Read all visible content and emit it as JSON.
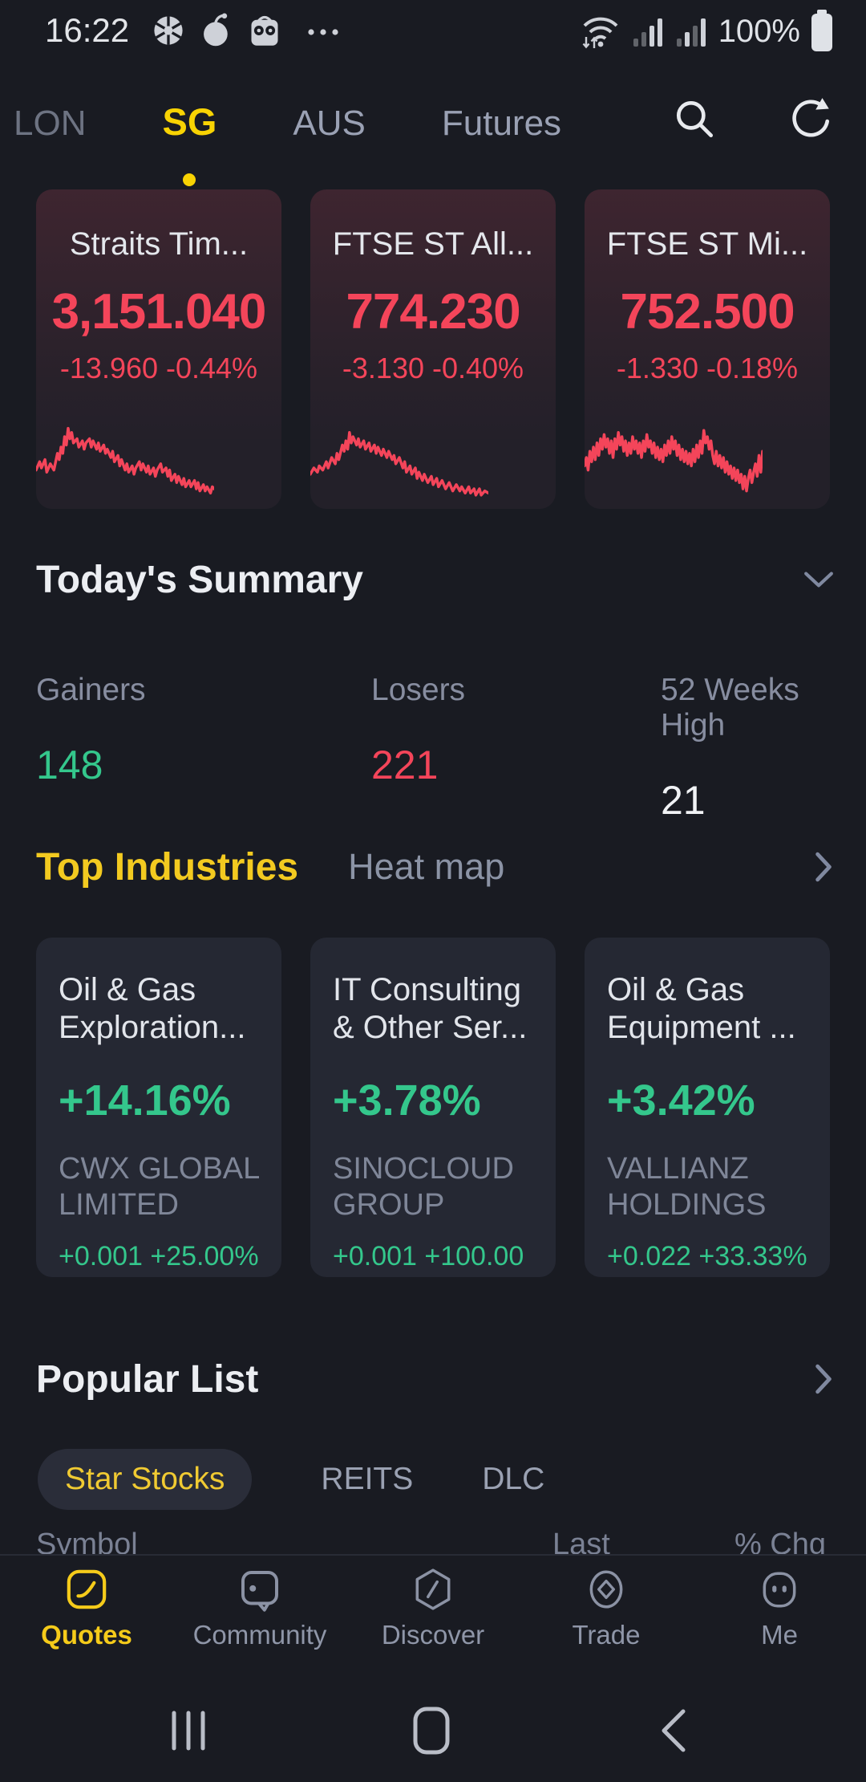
{
  "colors": {
    "background": "#191b22",
    "card": "#252833",
    "red": "#f4455a",
    "green": "#34c78c",
    "yellow": "#f5cb1a",
    "text_primary": "#e7e9ee",
    "text_secondary": "#878da0"
  },
  "status_bar": {
    "time": "16:22",
    "battery_level": "100%"
  },
  "icons": {
    "status_left": [
      "aperture-icon",
      "apple-icon",
      "owl-icon",
      "more-notifications-icon"
    ],
    "status_right": [
      "wifi-icon",
      "signal-icon",
      "signal-icon",
      "battery-icon"
    ],
    "tab_actions": [
      "search-icon",
      "refresh-icon"
    ],
    "section": [
      "chevron-down-icon",
      "chevron-right-icon"
    ],
    "bottom_nav": [
      "quotes-icon",
      "community-icon",
      "discover-icon",
      "trade-icon",
      "me-icon"
    ],
    "android": [
      "recents-icon",
      "home-icon",
      "back-icon"
    ]
  },
  "top_tabs": {
    "items": [
      {
        "label": "LON",
        "active": false
      },
      {
        "label": "SG",
        "active": true
      },
      {
        "label": "AUS",
        "active": false
      },
      {
        "label": "Futures",
        "active": false
      }
    ]
  },
  "index_cards": [
    {
      "name": "Straits Tim...",
      "last": "3,151.040",
      "change": "-13.960 -0.44%",
      "sparkline": [
        [
          0,
          26
        ],
        [
          2,
          22
        ],
        [
          3,
          25
        ],
        [
          5,
          21
        ],
        [
          6,
          27
        ],
        [
          8,
          23
        ],
        [
          10,
          26
        ],
        [
          11,
          22
        ],
        [
          12,
          18
        ],
        [
          13,
          21
        ],
        [
          14,
          15
        ],
        [
          15,
          18
        ],
        [
          16,
          10
        ],
        [
          17,
          14
        ],
        [
          18,
          6
        ],
        [
          19,
          11
        ],
        [
          20,
          8
        ],
        [
          21,
          13
        ],
        [
          23,
          11
        ],
        [
          24,
          15
        ],
        [
          26,
          12
        ],
        [
          27,
          16
        ],
        [
          28,
          13
        ],
        [
          30,
          11
        ],
        [
          31,
          15
        ],
        [
          32,
          12
        ],
        [
          34,
          16
        ],
        [
          35,
          13
        ],
        [
          36,
          17
        ],
        [
          38,
          14
        ],
        [
          39,
          18
        ],
        [
          40,
          16
        ],
        [
          42,
          20
        ],
        [
          43,
          17
        ],
        [
          44,
          22
        ],
        [
          46,
          19
        ],
        [
          47,
          24
        ],
        [
          48,
          21
        ],
        [
          50,
          26
        ],
        [
          51,
          23
        ],
        [
          52,
          27
        ],
        [
          54,
          24
        ],
        [
          55,
          28
        ],
        [
          56,
          25
        ],
        [
          58,
          22
        ],
        [
          59,
          26
        ],
        [
          60,
          23
        ],
        [
          62,
          27
        ],
        [
          63,
          24
        ],
        [
          64,
          28
        ],
        [
          66,
          25
        ],
        [
          67,
          29
        ],
        [
          68,
          26
        ],
        [
          70,
          23
        ],
        [
          71,
          27
        ],
        [
          73,
          25
        ],
        [
          74,
          29
        ],
        [
          75,
          26
        ],
        [
          76,
          31
        ],
        [
          78,
          28
        ],
        [
          79,
          32
        ],
        [
          80,
          29
        ],
        [
          82,
          33
        ],
        [
          83,
          30
        ],
        [
          84,
          34
        ],
        [
          86,
          31
        ],
        [
          87,
          34
        ],
        [
          89,
          31
        ],
        [
          90,
          35
        ],
        [
          91,
          32
        ],
        [
          92,
          36
        ],
        [
          94,
          33
        ],
        [
          95,
          36
        ],
        [
          96,
          34
        ],
        [
          98,
          37
        ],
        [
          99,
          34
        ],
        [
          100,
          35
        ]
      ]
    },
    {
      "name": "FTSE ST All...",
      "last": "774.230",
      "change": "-3.130 -0.40%",
      "sparkline": [
        [
          0,
          28
        ],
        [
          2,
          25
        ],
        [
          4,
          27
        ],
        [
          5,
          24
        ],
        [
          7,
          26
        ],
        [
          9,
          22
        ],
        [
          10,
          25
        ],
        [
          12,
          20
        ],
        [
          14,
          23
        ],
        [
          15,
          18
        ],
        [
          16,
          21
        ],
        [
          18,
          14
        ],
        [
          19,
          17
        ],
        [
          20,
          12
        ],
        [
          21,
          16
        ],
        [
          22,
          8
        ],
        [
          23,
          13
        ],
        [
          24,
          10
        ],
        [
          26,
          14
        ],
        [
          27,
          11
        ],
        [
          28,
          15
        ],
        [
          30,
          12
        ],
        [
          31,
          16
        ],
        [
          33,
          13
        ],
        [
          34,
          17
        ],
        [
          36,
          14
        ],
        [
          37,
          18
        ],
        [
          38,
          15
        ],
        [
          40,
          19
        ],
        [
          41,
          16
        ],
        [
          43,
          20
        ],
        [
          44,
          17
        ],
        [
          46,
          21
        ],
        [
          47,
          19
        ],
        [
          48,
          23
        ],
        [
          50,
          20
        ],
        [
          52,
          25
        ],
        [
          53,
          22
        ],
        [
          54,
          27
        ],
        [
          56,
          24
        ],
        [
          57,
          28
        ],
        [
          59,
          25
        ],
        [
          60,
          30
        ],
        [
          61,
          27
        ],
        [
          63,
          31
        ],
        [
          64,
          28
        ],
        [
          66,
          32
        ],
        [
          68,
          29
        ],
        [
          69,
          33
        ],
        [
          71,
          30
        ],
        [
          72,
          34
        ],
        [
          74,
          31
        ],
        [
          76,
          35
        ],
        [
          78,
          32
        ],
        [
          80,
          36
        ],
        [
          82,
          33
        ],
        [
          84,
          36
        ],
        [
          85,
          34
        ],
        [
          87,
          37
        ],
        [
          89,
          34
        ],
        [
          90,
          37
        ],
        [
          92,
          35
        ],
        [
          93,
          38
        ],
        [
          95,
          35
        ],
        [
          96,
          38
        ],
        [
          98,
          36
        ],
        [
          100,
          37
        ]
      ]
    },
    {
      "name": "FTSE ST Mi...",
      "last": "752.500",
      "change": "-1.330 -0.18%",
      "sparkline": [
        [
          0,
          24
        ],
        [
          1,
          20
        ],
        [
          2,
          26
        ],
        [
          3,
          17
        ],
        [
          4,
          22
        ],
        [
          5,
          15
        ],
        [
          6,
          21
        ],
        [
          7,
          13
        ],
        [
          8,
          19
        ],
        [
          9,
          11
        ],
        [
          10,
          16
        ],
        [
          11,
          9
        ],
        [
          12,
          15
        ],
        [
          13,
          11
        ],
        [
          14,
          18
        ],
        [
          15,
          12
        ],
        [
          16,
          20
        ],
        [
          17,
          11
        ],
        [
          18,
          16
        ],
        [
          19,
          8
        ],
        [
          20,
          14
        ],
        [
          21,
          10
        ],
        [
          22,
          17
        ],
        [
          23,
          12
        ],
        [
          24,
          19
        ],
        [
          25,
          13
        ],
        [
          26,
          18
        ],
        [
          27,
          10
        ],
        [
          28,
          16
        ],
        [
          29,
          12
        ],
        [
          30,
          18
        ],
        [
          31,
          13
        ],
        [
          32,
          20
        ],
        [
          33,
          12
        ],
        [
          34,
          17
        ],
        [
          35,
          9
        ],
        [
          36,
          15
        ],
        [
          37,
          12
        ],
        [
          38,
          18
        ],
        [
          39,
          13
        ],
        [
          40,
          20
        ],
        [
          41,
          15
        ],
        [
          42,
          21
        ],
        [
          43,
          16
        ],
        [
          44,
          22
        ],
        [
          45,
          14
        ],
        [
          46,
          19
        ],
        [
          47,
          12
        ],
        [
          48,
          18
        ],
        [
          49,
          10
        ],
        [
          50,
          16
        ],
        [
          51,
          12
        ],
        [
          52,
          19
        ],
        [
          53,
          14
        ],
        [
          54,
          21
        ],
        [
          55,
          16
        ],
        [
          56,
          22
        ],
        [
          57,
          17
        ],
        [
          58,
          23
        ],
        [
          59,
          18
        ],
        [
          60,
          24
        ],
        [
          61,
          16
        ],
        [
          62,
          22
        ],
        [
          63,
          14
        ],
        [
          64,
          20
        ],
        [
          65,
          12
        ],
        [
          66,
          18
        ],
        [
          67,
          7
        ],
        [
          68,
          13
        ],
        [
          69,
          10
        ],
        [
          70,
          16
        ],
        [
          71,
          12
        ],
        [
          72,
          19
        ],
        [
          73,
          23
        ],
        [
          74,
          17
        ],
        [
          75,
          24
        ],
        [
          76,
          19
        ],
        [
          77,
          25
        ],
        [
          78,
          20
        ],
        [
          79,
          27
        ],
        [
          80,
          22
        ],
        [
          81,
          28
        ],
        [
          82,
          24
        ],
        [
          83,
          30
        ],
        [
          84,
          25
        ],
        [
          85,
          31
        ],
        [
          86,
          26
        ],
        [
          87,
          32
        ],
        [
          88,
          28
        ],
        [
          89,
          35
        ],
        [
          90,
          29
        ],
        [
          91,
          36
        ],
        [
          92,
          30
        ],
        [
          93,
          26
        ],
        [
          94,
          32
        ],
        [
          95,
          27
        ],
        [
          96,
          23
        ],
        [
          97,
          29
        ],
        [
          98,
          19
        ],
        [
          99,
          27
        ],
        [
          100,
          17
        ]
      ]
    }
  ],
  "summary": {
    "title": "Today's Summary",
    "stats": [
      {
        "label": "Gainers",
        "value": "148",
        "color": "green"
      },
      {
        "label": "Losers",
        "value": "221",
        "color": "red"
      },
      {
        "label": "52 Weeks High",
        "value": "21",
        "color": "white"
      }
    ]
  },
  "industries": {
    "active_tab": "Top Industries",
    "inactive_tab": "Heat map",
    "cards": [
      {
        "title_line1": "Oil & Gas",
        "title_line2": "Exploration...",
        "percent": "+14.16%",
        "stock_line1": "CWX GLOBAL",
        "stock_line2": "LIMITED",
        "stock_change": "+0.001 +25.00%"
      },
      {
        "title_line1": "IT Consulting",
        "title_line2": "& Other Ser...",
        "percent": "+3.78%",
        "stock_line1": "SINOCLOUD",
        "stock_line2": "GROUP",
        "stock_change": "+0.001 +100.00"
      },
      {
        "title_line1": "Oil & Gas",
        "title_line2": "Equipment ...",
        "percent": "+3.42%",
        "stock_line1": "VALLIANZ",
        "stock_line2": "HOLDINGS",
        "stock_change": "+0.022 +33.33%"
      }
    ]
  },
  "popular": {
    "title": "Popular List",
    "pills": [
      {
        "label": "Star Stocks",
        "active": true
      },
      {
        "label": "REITS",
        "active": false
      },
      {
        "label": "DLC",
        "active": false
      }
    ],
    "table_headers": [
      "Symbol",
      "Last",
      "% Chg"
    ]
  },
  "bottom_nav": {
    "items": [
      {
        "label": "Quotes",
        "active": true
      },
      {
        "label": "Community",
        "active": false
      },
      {
        "label": "Discover",
        "active": false
      },
      {
        "label": "Trade",
        "active": false
      },
      {
        "label": "Me",
        "active": false
      }
    ]
  }
}
